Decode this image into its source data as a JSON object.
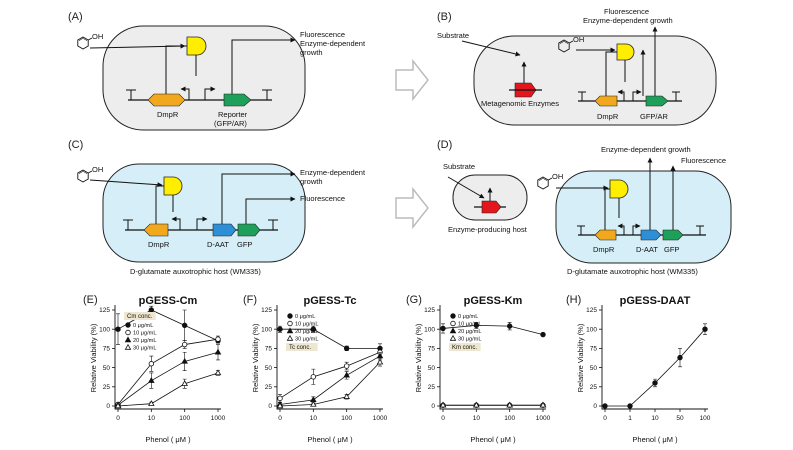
{
  "panels": {
    "a": {
      "label": "(A)",
      "out1": "Fluorescence",
      "out2": "Enzyme-dependent",
      "out3": "growth",
      "dmpr": "DmpR",
      "rep1": "Reporter",
      "rep2": "(GFP/AR)"
    },
    "b": {
      "label": "(B)",
      "out1": "Fluorescence",
      "out2": "Enzyme-dependent growth",
      "substrate": "Substrate",
      "meta": "Metagenomic Enzymes",
      "dmpr": "DmpR",
      "rep": "GFP/AR"
    },
    "c": {
      "label": "(C)",
      "out1": "Enzyme-dependent",
      "out2": "growth",
      "out3": "Fluorescence",
      "dmpr": "DmpR",
      "daat": "D-AAT",
      "gfp": "GFP",
      "host": "D-glutamate auxotrophic host (WM335)"
    },
    "d": {
      "label": "(D)",
      "out1": "Enzyme-dependent growth",
      "out2": "Fluorescence",
      "substrate": "Substrate",
      "prod": "Enzyme-producing host",
      "dmpr": "DmpR",
      "daat": "D-AAT",
      "gfp": "GFP",
      "host": "D-glutamate auxotrophic host (WM335)"
    }
  },
  "colors": {
    "dmpr": "#f2a81d",
    "reporter": "#1fa05a",
    "daat": "#2d8fd8",
    "meta": "#e3161d",
    "regulator": "#ffee00",
    "host_fill": "#d5eef7",
    "cell_fill": "#ededed"
  },
  "icons": {
    "phenol": "phenol-structure-icon",
    "arrow": "hollow-right-arrow-icon"
  },
  "phenol_label": "OH",
  "chart_data": [
    {
      "type": "line",
      "label": "(E)",
      "title": "pGESS-Cm",
      "xlabel": "Phenol ( μM )",
      "ylabel": "Relative Viability (%)",
      "x_ticks": [
        "0",
        "10",
        "100",
        "1000"
      ],
      "y_ticks": [
        "0",
        "25",
        "50",
        "75",
        "100",
        "125"
      ],
      "ylim": [
        0,
        125
      ],
      "x_scale": "log (categorical ticks)",
      "legend_title": "Cm conc.",
      "legend_position": "top-left",
      "series": [
        {
          "name": "0 μg/mL",
          "marker": "filled-circle",
          "x": [
            "0",
            "10",
            "100",
            "1000"
          ],
          "y": [
            100,
            125,
            105,
            85
          ],
          "err": [
            20,
            5,
            20,
            3
          ]
        },
        {
          "name": "10 μg/mL",
          "marker": "open-circle",
          "x": [
            "0",
            "10",
            "100",
            "1000"
          ],
          "y": [
            2,
            55,
            80,
            87
          ],
          "err": [
            2,
            10,
            5,
            4
          ]
        },
        {
          "name": "20 μg/mL",
          "marker": "filled-triangle",
          "x": [
            "0",
            "10",
            "100",
            "1000"
          ],
          "y": [
            1,
            33,
            58,
            70
          ],
          "err": [
            1,
            10,
            12,
            10
          ]
        },
        {
          "name": "30 μg/mL",
          "marker": "open-triangle",
          "x": [
            "0",
            "10",
            "100",
            "1000"
          ],
          "y": [
            0,
            3,
            29,
            43
          ],
          "err": [
            1,
            2,
            6,
            3
          ]
        }
      ]
    },
    {
      "type": "line",
      "label": "(F)",
      "title": "pGESS-Tc",
      "xlabel": "Phenol ( μM )",
      "ylabel": "Relative Viability (%)",
      "x_ticks": [
        "0",
        "10",
        "100",
        "1000"
      ],
      "y_ticks": [
        "0",
        "25",
        "50",
        "75",
        "100",
        "125"
      ],
      "ylim": [
        0,
        125
      ],
      "x_scale": "log (categorical ticks)",
      "legend_title": "Tc conc.",
      "legend_position": "top-left",
      "series": [
        {
          "name": "0 μg/mL",
          "marker": "filled-circle",
          "x": [
            "0",
            "10",
            "100",
            "1000"
          ],
          "y": [
            100,
            100,
            75,
            75
          ],
          "err": [
            4,
            4,
            3,
            6
          ]
        },
        {
          "name": "10 μg/mL",
          "marker": "open-circle",
          "x": [
            "0",
            "10",
            "100",
            "1000"
          ],
          "y": [
            10,
            38,
            52,
            70
          ],
          "err": [
            5,
            10,
            5,
            5
          ]
        },
        {
          "name": "20 μg/mL",
          "marker": "filled-triangle",
          "x": [
            "0",
            "10",
            "100",
            "1000"
          ],
          "y": [
            2,
            8,
            40,
            65
          ],
          "err": [
            2,
            4,
            5,
            5
          ]
        },
        {
          "name": "30 μg/mL",
          "marker": "open-triangle",
          "x": [
            "0",
            "10",
            "100",
            "1000"
          ],
          "y": [
            0,
            2,
            12,
            57
          ],
          "err": [
            1,
            2,
            3,
            5
          ]
        }
      ]
    },
    {
      "type": "line",
      "label": "(G)",
      "title": "pGESS-Km",
      "xlabel": "Phenol ( μM )",
      "ylabel": "Relative Viability (%)",
      "x_ticks": [
        "0",
        "10",
        "100",
        "1000"
      ],
      "y_ticks": [
        "0",
        "25",
        "50",
        "75",
        "100",
        "125"
      ],
      "ylim": [
        0,
        125
      ],
      "x_scale": "log (categorical ticks)",
      "legend_title": "Km conc.",
      "legend_position": "top-left",
      "series": [
        {
          "name": "0 μg/mL",
          "marker": "filled-circle",
          "x": [
            "0",
            "10",
            "100",
            "1000"
          ],
          "y": [
            101,
            105,
            104,
            93
          ],
          "err": [
            6,
            4,
            5,
            2
          ]
        },
        {
          "name": "10 μg/mL",
          "marker": "open-circle",
          "x": [
            "0",
            "10",
            "100",
            "1000"
          ],
          "y": [
            1,
            1,
            1,
            1
          ],
          "err": [
            0,
            0,
            0,
            0
          ]
        },
        {
          "name": "20 μg/mL",
          "marker": "filled-triangle",
          "x": [
            "0",
            "10",
            "100",
            "1000"
          ],
          "y": [
            1,
            1,
            1,
            1
          ],
          "err": [
            0,
            0,
            0,
            0
          ]
        },
        {
          "name": "30 μg/mL",
          "marker": "open-triangle",
          "x": [
            "0",
            "10",
            "100",
            "1000"
          ],
          "y": [
            1,
            1,
            1,
            1
          ],
          "err": [
            0,
            0,
            0,
            0
          ]
        }
      ]
    },
    {
      "type": "line",
      "label": "(H)",
      "title": "pGESS-DAAT",
      "xlabel": "Phenol ( μM )",
      "ylabel": "Relative Viability (%)",
      "x_ticks": [
        "0",
        "1",
        "10",
        "50",
        "100"
      ],
      "y_ticks": [
        "0",
        "25",
        "50",
        "75",
        "100",
        "125"
      ],
      "ylim": [
        0,
        125
      ],
      "x_scale": "categorical",
      "series": [
        {
          "name": "",
          "marker": "filled-circle",
          "x": [
            "0",
            "1",
            "10",
            "50",
            "100"
          ],
          "y": [
            0,
            0,
            30,
            63,
            100
          ],
          "err": [
            0,
            0,
            5,
            12,
            7
          ]
        }
      ]
    }
  ]
}
